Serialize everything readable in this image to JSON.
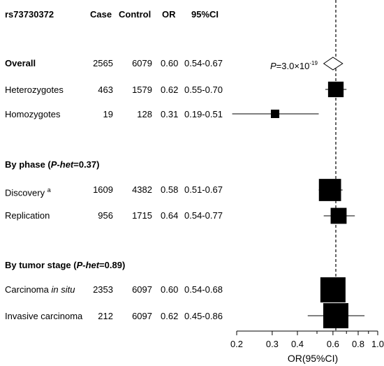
{
  "header": {
    "snp": "rs73730372",
    "case": "Case",
    "control": "Control",
    "or": "OR",
    "ci": "95%CI"
  },
  "rows": [
    {
      "label": "Overall",
      "case": "2565",
      "control": "6079",
      "or": "0.60",
      "ci": "0.54-0.67",
      "bold": true
    },
    {
      "label": "Heterozygotes",
      "case": "463",
      "control": "1579",
      "or": "0.62",
      "ci": "0.55-0.70"
    },
    {
      "label": "Homozygotes",
      "case": "19",
      "control": "128",
      "or": "0.31",
      "ci": "0.19-0.51"
    },
    {
      "label": "Discovery",
      "label_sup": "a",
      "case": "1609",
      "control": "4382",
      "or": "0.58",
      "ci": "0.51-0.67"
    },
    {
      "label": "Replication",
      "case": "956",
      "control": "1715",
      "or": "0.64",
      "ci": "0.54-0.77"
    },
    {
      "label": "Carcinoma",
      "label_italic": "in situ",
      "case": "2353",
      "control": "6097",
      "or": "0.60",
      "ci": "0.54-0.68"
    },
    {
      "label": "Invasive carcinoma",
      "case": "212",
      "control": "6097",
      "or": "0.62",
      "ci": "0.45-0.86"
    }
  ],
  "sections": [
    {
      "prefix": "By phase (",
      "italic": "P-het",
      "suffix": "=0.37)"
    },
    {
      "prefix": "By tumor stage (",
      "italic": "P-het",
      "suffix": "=0.89)"
    }
  ],
  "p_annotation": {
    "prefix": "P",
    "mid": "=3.0×10",
    "exp": "-19"
  },
  "chart_data": {
    "type": "forest",
    "title": "",
    "xlabel": "OR(95%CI)",
    "x_scale": "log",
    "xlim": [
      0.2,
      1.0
    ],
    "x_ticks": [
      0.2,
      0.3,
      0.4,
      0.6,
      0.8,
      1.0
    ],
    "x_tick_labels": [
      "0.2",
      "0.3",
      "0.4",
      "0.6",
      "0.8",
      "1.0"
    ],
    "x_minor_ticks": [
      0.5,
      0.7,
      0.9
    ],
    "reference_line": 0.62,
    "points": [
      {
        "label": "Overall",
        "or": 0.6,
        "lo": 0.54,
        "hi": 0.67,
        "marker": "diamond"
      },
      {
        "label": "Heterozygotes",
        "or": 0.62,
        "lo": 0.55,
        "hi": 0.7,
        "marker": "square",
        "weight": 1579
      },
      {
        "label": "Homozygotes",
        "or": 0.31,
        "lo": 0.19,
        "hi": 0.51,
        "marker": "square",
        "weight": 128
      },
      {
        "label": "Discovery",
        "or": 0.58,
        "lo": 0.51,
        "hi": 0.67,
        "marker": "square",
        "weight": 4382
      },
      {
        "label": "Replication",
        "or": 0.64,
        "lo": 0.54,
        "hi": 0.77,
        "marker": "square",
        "weight": 1715
      },
      {
        "label": "Carcinoma in situ",
        "or": 0.6,
        "lo": 0.54,
        "hi": 0.68,
        "marker": "square",
        "weight": 6097
      },
      {
        "label": "Invasive carcinoma",
        "or": 0.62,
        "lo": 0.45,
        "hi": 0.86,
        "marker": "square",
        "weight": 6097
      }
    ]
  }
}
